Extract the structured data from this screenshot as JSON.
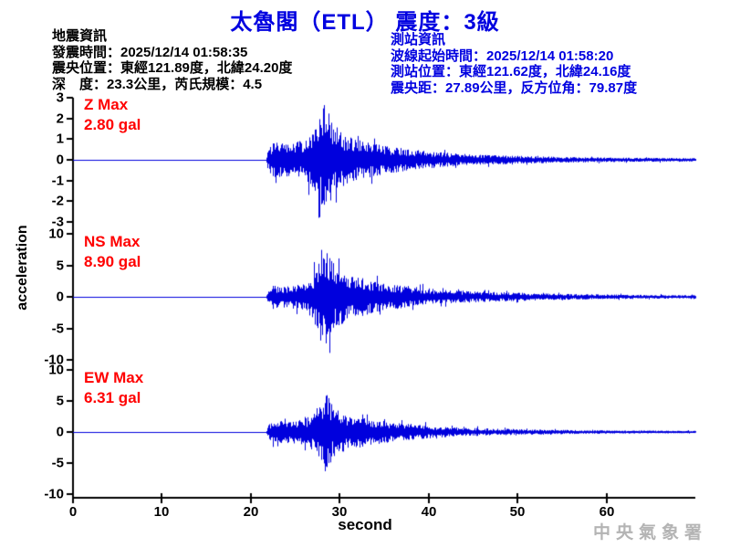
{
  "title": "太魯閣（ETL） 震度：3級",
  "quake_info": {
    "heading": "地震資訊",
    "lines": [
      "發震時間：2025/12/14 01:58:35",
      "震央位置：東經121.89度，北緯24.20度",
      "深　度：23.3公里，芮氏規模：4.5"
    ]
  },
  "station_info": {
    "heading": "測站資訊",
    "lines": [
      "波線起始時間：2025/12/14 01:58:20",
      "測站位置：東經121.62度，北緯24.16度",
      "震央距：27.89公里，反方位角：79.87度"
    ]
  },
  "watermark": "中央氣象署",
  "colors": {
    "title_blue": "#0000e0",
    "station_info_blue": "#0000e0",
    "max_label_red": "#ff0000",
    "waveform_blue": "#0000dd",
    "axis_black": "#000000",
    "watermark_gray": "#b4b4b4"
  },
  "chart_data": {
    "type": "line",
    "subtype": "seismogram-3-component",
    "xlabel": "second",
    "ylabel": "acceleration",
    "x_range": [
      0,
      70
    ],
    "xticks": [
      0,
      10,
      20,
      30,
      40,
      50,
      60
    ],
    "grid": false,
    "waveform_color": "#0000dd",
    "signal_start_s": 21.9,
    "peak_time_s": 28.3,
    "panels": [
      {
        "name": "Z",
        "label_line1": "Z Max",
        "label_line2": "2.80 gal",
        "max_gal": 2.8,
        "unit": "gal",
        "ylim": [
          -3,
          3
        ],
        "yticks": [
          3,
          2,
          1,
          0,
          -1,
          -2,
          -3
        ],
        "envelope": [
          [
            0,
            0
          ],
          [
            21.7,
            0
          ],
          [
            21.9,
            0.18
          ],
          [
            22.5,
            0.3
          ],
          [
            24,
            0.3
          ],
          [
            26,
            0.33
          ],
          [
            27,
            0.5
          ],
          [
            27.8,
            0.8
          ],
          [
            28.3,
            1.0
          ],
          [
            29,
            0.7
          ],
          [
            30,
            0.5
          ],
          [
            31,
            0.42
          ],
          [
            33,
            0.32
          ],
          [
            35,
            0.25
          ],
          [
            38,
            0.18
          ],
          [
            42,
            0.12
          ],
          [
            46,
            0.09
          ],
          [
            50,
            0.07
          ],
          [
            55,
            0.05
          ],
          [
            60,
            0.04
          ],
          [
            65,
            0.035
          ],
          [
            70,
            0.03
          ]
        ]
      },
      {
        "name": "NS",
        "label_line1": "NS Max",
        "label_line2": "8.90 gal",
        "max_gal": 8.9,
        "unit": "gal",
        "ylim": [
          -10,
          10
        ],
        "yticks": [
          10,
          5,
          0,
          -5,
          -10
        ],
        "envelope": [
          [
            0,
            0
          ],
          [
            21.7,
            0
          ],
          [
            21.9,
            0.15
          ],
          [
            22.5,
            0.22
          ],
          [
            24,
            0.22
          ],
          [
            26,
            0.25
          ],
          [
            27,
            0.45
          ],
          [
            27.7,
            0.9
          ],
          [
            28.5,
            1.0
          ],
          [
            29.3,
            0.65
          ],
          [
            30.5,
            0.5
          ],
          [
            32,
            0.4
          ],
          [
            34,
            0.3
          ],
          [
            36,
            0.25
          ],
          [
            39,
            0.18
          ],
          [
            42,
            0.13
          ],
          [
            46,
            0.1
          ],
          [
            50,
            0.08
          ],
          [
            54,
            0.06
          ],
          [
            58,
            0.05
          ],
          [
            63,
            0.04
          ],
          [
            70,
            0.03
          ]
        ]
      },
      {
        "name": "EW",
        "label_line1": "EW Max",
        "label_line2": "6.31 gal",
        "max_gal": 6.31,
        "unit": "gal",
        "ylim": [
          -10,
          10
        ],
        "yticks": [
          10,
          5,
          0,
          -5,
          -10
        ],
        "envelope": [
          [
            0,
            0
          ],
          [
            21.7,
            0
          ],
          [
            21.9,
            0.17
          ],
          [
            22.5,
            0.25
          ],
          [
            24,
            0.27
          ],
          [
            26,
            0.3
          ],
          [
            27,
            0.45
          ],
          [
            27.9,
            0.85
          ],
          [
            28.4,
            1.0
          ],
          [
            29.2,
            0.6
          ],
          [
            30.5,
            0.45
          ],
          [
            32,
            0.38
          ],
          [
            34,
            0.3
          ],
          [
            36,
            0.24
          ],
          [
            39,
            0.17
          ],
          [
            42,
            0.12
          ],
          [
            46,
            0.09
          ],
          [
            50,
            0.07
          ],
          [
            54,
            0.055
          ],
          [
            58,
            0.045
          ],
          [
            63,
            0.035
          ],
          [
            70,
            0.03
          ]
        ]
      }
    ]
  }
}
